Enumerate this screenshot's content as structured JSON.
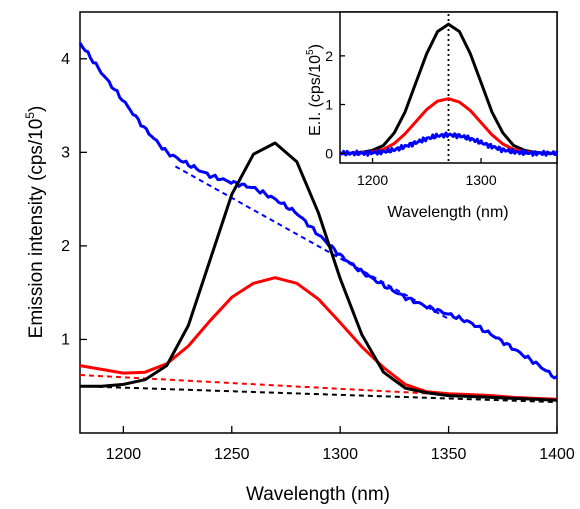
{
  "chart_data": [
    {
      "type": "line",
      "xlabel": "Wavelength (nm)",
      "ylabel_prefix": "Emission intensity (cps/10",
      "ylabel_exp": "5",
      "ylabel_suffix": ")",
      "xlim": [
        1180,
        1400
      ],
      "ylim": [
        0,
        4.5
      ],
      "xticks": [
        1200,
        1250,
        1300,
        1350,
        1400
      ],
      "yticks": [
        1,
        2,
        3,
        4
      ],
      "grid": false,
      "series": [
        {
          "color": "#0000ff",
          "style": "solid",
          "noise": true,
          "x": [
            1180,
            1190,
            1200,
            1210,
            1220,
            1230,
            1240,
            1250,
            1260,
            1270,
            1280,
            1290,
            1300,
            1310,
            1320,
            1330,
            1340,
            1350,
            1360,
            1370,
            1380,
            1390,
            1400
          ],
          "y": [
            4.17,
            3.85,
            3.55,
            3.25,
            3.0,
            2.87,
            2.75,
            2.68,
            2.62,
            2.5,
            2.35,
            2.12,
            1.9,
            1.72,
            1.58,
            1.45,
            1.35,
            1.27,
            1.18,
            1.05,
            0.9,
            0.75,
            0.58
          ]
        },
        {
          "color": "#0000ff",
          "style": "dashed",
          "x": [
            1224,
            1350
          ],
          "y": [
            2.85,
            1.22
          ]
        },
        {
          "color": "#ff0000",
          "style": "solid",
          "x": [
            1180,
            1190,
            1200,
            1210,
            1220,
            1230,
            1240,
            1250,
            1260,
            1270,
            1280,
            1290,
            1300,
            1310,
            1320,
            1330,
            1340,
            1350,
            1360,
            1370,
            1380,
            1390,
            1400
          ],
          "y": [
            0.72,
            0.68,
            0.64,
            0.65,
            0.74,
            0.93,
            1.2,
            1.45,
            1.6,
            1.66,
            1.6,
            1.43,
            1.18,
            0.92,
            0.7,
            0.52,
            0.44,
            0.42,
            0.41,
            0.4,
            0.38,
            0.37,
            0.36
          ]
        },
        {
          "color": "#ff0000",
          "style": "dashed",
          "x": [
            1180,
            1400
          ],
          "y": [
            0.62,
            0.35
          ]
        },
        {
          "color": "#000000",
          "style": "solid",
          "x": [
            1180,
            1190,
            1200,
            1210,
            1220,
            1230,
            1240,
            1250,
            1260,
            1270,
            1280,
            1290,
            1300,
            1310,
            1320,
            1330,
            1340,
            1350,
            1360,
            1370,
            1380,
            1390,
            1400
          ],
          "y": [
            0.5,
            0.5,
            0.52,
            0.57,
            0.72,
            1.15,
            1.85,
            2.55,
            2.98,
            3.1,
            2.9,
            2.35,
            1.65,
            1.05,
            0.65,
            0.48,
            0.43,
            0.4,
            0.39,
            0.38,
            0.37,
            0.36,
            0.35
          ]
        },
        {
          "color": "#000000",
          "style": "dashed",
          "x": [
            1180,
            1400
          ],
          "y": [
            0.5,
            0.33
          ]
        }
      ]
    },
    {
      "type": "line",
      "inset": true,
      "xlabel": "Wavelength (nm)",
      "ylabel_prefix": "E.I. (cps/10",
      "ylabel_exp": "5",
      "ylabel_suffix": ")",
      "xlim": [
        1170,
        1370
      ],
      "ylim": [
        -0.2,
        2.9
      ],
      "xticks": [
        1200,
        1300
      ],
      "yticks": [
        0,
        1,
        2
      ],
      "vline_x": 1270,
      "series": [
        {
          "color": "#000000",
          "style": "solid",
          "x": [
            1170,
            1180,
            1190,
            1200,
            1210,
            1220,
            1230,
            1240,
            1250,
            1260,
            1270,
            1280,
            1290,
            1300,
            1310,
            1320,
            1330,
            1340,
            1350,
            1360,
            1370
          ],
          "y": [
            0.0,
            0.0,
            0.02,
            0.06,
            0.16,
            0.42,
            0.85,
            1.45,
            2.05,
            2.5,
            2.65,
            2.5,
            2.05,
            1.45,
            0.85,
            0.42,
            0.16,
            0.06,
            0.02,
            0.0,
            0.0
          ]
        },
        {
          "color": "#ff0000",
          "style": "solid",
          "x": [
            1170,
            1180,
            1190,
            1200,
            1210,
            1220,
            1230,
            1240,
            1250,
            1260,
            1270,
            1280,
            1290,
            1300,
            1310,
            1320,
            1330,
            1340,
            1350,
            1360,
            1370
          ],
          "y": [
            0.0,
            0.0,
            0.01,
            0.03,
            0.08,
            0.2,
            0.4,
            0.65,
            0.9,
            1.07,
            1.12,
            1.05,
            0.88,
            0.63,
            0.38,
            0.19,
            0.08,
            0.03,
            0.01,
            0.0,
            0.0
          ]
        },
        {
          "color": "#0000ff",
          "style": "solid",
          "noise": true,
          "x": [
            1170,
            1180,
            1190,
            1200,
            1210,
            1220,
            1230,
            1240,
            1250,
            1260,
            1270,
            1280,
            1290,
            1300,
            1310,
            1320,
            1330,
            1340,
            1350,
            1360,
            1370
          ],
          "y": [
            0.0,
            0.0,
            0.0,
            0.01,
            0.03,
            0.07,
            0.14,
            0.22,
            0.3,
            0.36,
            0.38,
            0.36,
            0.3,
            0.22,
            0.14,
            0.07,
            0.03,
            0.01,
            0.0,
            0.0,
            0.0
          ]
        }
      ]
    }
  ]
}
